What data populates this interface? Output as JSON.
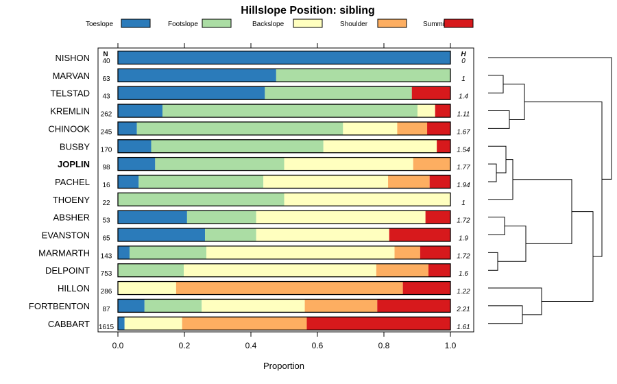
{
  "chart_data": {
    "type": "bar",
    "stacked": true,
    "orientation": "horizontal",
    "title": "Hillslope Position: sibling",
    "xlabel": "Proportion",
    "xlim": [
      0,
      1
    ],
    "x_ticks": [
      "0.0",
      "0.2",
      "0.4",
      "0.6",
      "0.8",
      "1.0"
    ],
    "x_tick_values": [
      0,
      0.2,
      0.4,
      0.6,
      0.8,
      1.0
    ],
    "n_header": "N",
    "h_header": "H",
    "legend_position": "top",
    "series": [
      {
        "name": "Toeslope",
        "color": "#2b7bba"
      },
      {
        "name": "Footslope",
        "color": "#abdda4"
      },
      {
        "name": "Backslope",
        "color": "#ffffbf"
      },
      {
        "name": "Shoulder",
        "color": "#fdae61"
      },
      {
        "name": "Summit",
        "color": "#d7191c"
      }
    ],
    "categories": [
      "NISHON",
      "MARVAN",
      "TELSTAD",
      "KREMLIN",
      "CHINOOK",
      "BUSBY",
      "JOPLIN",
      "PACHEL",
      "THOENY",
      "ABSHER",
      "EVANSTON",
      "MARMARTH",
      "DELPOINT",
      "HILLON",
      "FORTBENTON",
      "CABBART"
    ],
    "highlight_category": "JOPLIN",
    "rows": [
      {
        "label": "NISHON",
        "n": "40",
        "h": "0",
        "values": [
          1.0,
          0,
          0,
          0,
          0
        ]
      },
      {
        "label": "MARVAN",
        "n": "63",
        "h": "1",
        "values": [
          0.476,
          0.524,
          0,
          0,
          0
        ]
      },
      {
        "label": "TELSTAD",
        "n": "43",
        "h": "1.4",
        "values": [
          0.442,
          0.442,
          0,
          0,
          0.116
        ]
      },
      {
        "label": "KREMLIN",
        "n": "262",
        "h": "1.11",
        "values": [
          0.134,
          0.767,
          0.053,
          0,
          0.046
        ]
      },
      {
        "label": "CHINOOK",
        "n": "245",
        "h": "1.67",
        "values": [
          0.057,
          0.62,
          0.163,
          0.09,
          0.07
        ]
      },
      {
        "label": "BUSBY",
        "n": "170",
        "h": "1.54",
        "values": [
          0.1,
          0.518,
          0.341,
          0,
          0.041
        ]
      },
      {
        "label": "JOPLIN",
        "n": "98",
        "h": "1.77",
        "values": [
          0.112,
          0.388,
          0.388,
          0.112,
          0
        ]
      },
      {
        "label": "PACHEL",
        "n": "16",
        "h": "1.94",
        "values": [
          0.0625,
          0.375,
          0.375,
          0.125,
          0.0625
        ]
      },
      {
        "label": "THOENY",
        "n": "22",
        "h": "1",
        "values": [
          0,
          0.5,
          0.5,
          0,
          0
        ]
      },
      {
        "label": "ABSHER",
        "n": "53",
        "h": "1.72",
        "values": [
          0.208,
          0.208,
          0.509,
          0,
          0.075
        ]
      },
      {
        "label": "EVANSTON",
        "n": "65",
        "h": "1.9",
        "values": [
          0.262,
          0.154,
          0.4,
          0,
          0.184
        ]
      },
      {
        "label": "MARMARTH",
        "n": "143",
        "h": "1.72",
        "values": [
          0.035,
          0.231,
          0.566,
          0.077,
          0.091
        ]
      },
      {
        "label": "DELPOINT",
        "n": "753",
        "h": "1.6",
        "values": [
          0,
          0.198,
          0.579,
          0.157,
          0.066
        ]
      },
      {
        "label": "HILLON",
        "n": "286",
        "h": "1.22",
        "values": [
          0,
          0,
          0.175,
          0.682,
          0.143
        ]
      },
      {
        "label": "FORTBENTON",
        "n": "87",
        "h": "2.21",
        "values": [
          0.08,
          0.172,
          0.31,
          0.218,
          0.22
        ]
      },
      {
        "label": "CABBART",
        "n": "1615",
        "h": "1.61",
        "values": [
          0.02,
          0,
          0.173,
          0.375,
          0.432
        ]
      }
    ]
  }
}
